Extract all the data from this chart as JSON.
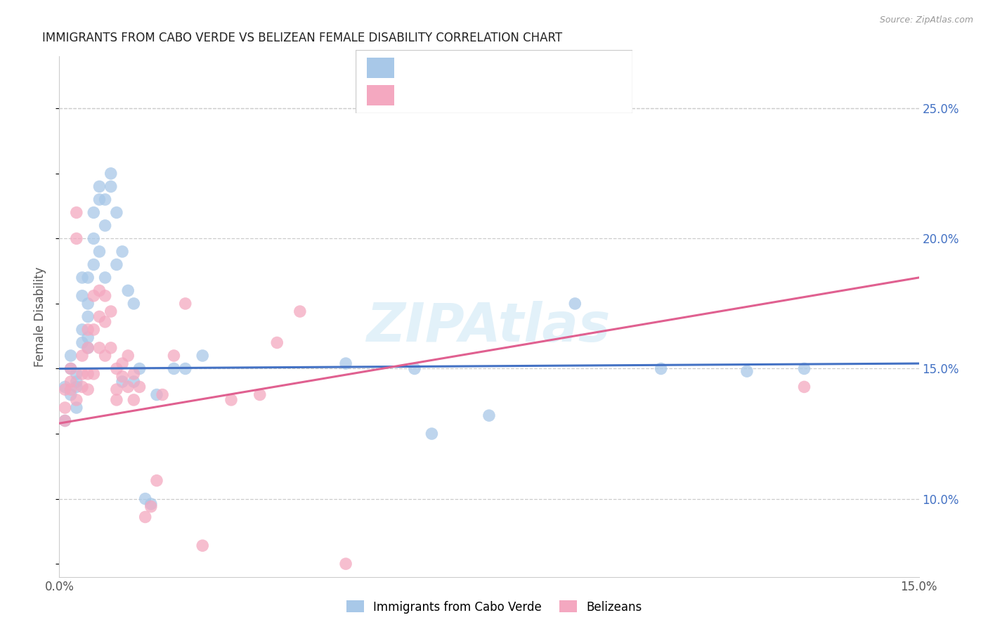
{
  "title": "IMMIGRANTS FROM CABO VERDE VS BELIZEAN FEMALE DISABILITY CORRELATION CHART",
  "source": "Source: ZipAtlas.com",
  "ylabel": "Female Disability",
  "xlim": [
    0.0,
    0.15
  ],
  "ylim": [
    0.07,
    0.27
  ],
  "x_ticks": [
    0.0,
    0.03,
    0.06,
    0.09,
    0.12,
    0.15
  ],
  "x_tick_labels": [
    "0.0%",
    "",
    "",
    "",
    "",
    "15.0%"
  ],
  "y_ticks_right": [
    0.1,
    0.15,
    0.2,
    0.25
  ],
  "y_tick_labels_right": [
    "10.0%",
    "15.0%",
    "20.0%",
    "25.0%"
  ],
  "color_blue": "#a8c8e8",
  "color_pink": "#f4a8c0",
  "line_color_blue": "#4472c4",
  "line_color_pink": "#e06090",
  "watermark": "ZIPAtlas",
  "cabo_verde_x": [
    0.001,
    0.001,
    0.002,
    0.002,
    0.002,
    0.003,
    0.003,
    0.003,
    0.003,
    0.004,
    0.004,
    0.004,
    0.004,
    0.005,
    0.005,
    0.005,
    0.005,
    0.005,
    0.006,
    0.006,
    0.006,
    0.007,
    0.007,
    0.007,
    0.008,
    0.008,
    0.008,
    0.009,
    0.009,
    0.01,
    0.01,
    0.011,
    0.011,
    0.012,
    0.013,
    0.013,
    0.014,
    0.015,
    0.016,
    0.017,
    0.02,
    0.022,
    0.025,
    0.05,
    0.062,
    0.065,
    0.075,
    0.09,
    0.105,
    0.12,
    0.13
  ],
  "cabo_verde_y": [
    0.13,
    0.143,
    0.15,
    0.14,
    0.155,
    0.145,
    0.148,
    0.143,
    0.135,
    0.185,
    0.178,
    0.165,
    0.16,
    0.185,
    0.175,
    0.17,
    0.162,
    0.158,
    0.2,
    0.21,
    0.19,
    0.22,
    0.215,
    0.195,
    0.215,
    0.205,
    0.185,
    0.225,
    0.22,
    0.21,
    0.19,
    0.195,
    0.145,
    0.18,
    0.175,
    0.145,
    0.15,
    0.1,
    0.098,
    0.14,
    0.15,
    0.15,
    0.155,
    0.152,
    0.15,
    0.125,
    0.132,
    0.175,
    0.15,
    0.149,
    0.15
  ],
  "belizean_x": [
    0.001,
    0.001,
    0.001,
    0.002,
    0.002,
    0.002,
    0.003,
    0.003,
    0.003,
    0.004,
    0.004,
    0.004,
    0.005,
    0.005,
    0.005,
    0.005,
    0.006,
    0.006,
    0.006,
    0.007,
    0.007,
    0.007,
    0.008,
    0.008,
    0.008,
    0.009,
    0.009,
    0.01,
    0.01,
    0.01,
    0.011,
    0.011,
    0.012,
    0.012,
    0.013,
    0.013,
    0.014,
    0.015,
    0.016,
    0.017,
    0.018,
    0.02,
    0.022,
    0.025,
    0.03,
    0.035,
    0.038,
    0.042,
    0.05,
    0.13
  ],
  "belizean_y": [
    0.135,
    0.13,
    0.142,
    0.145,
    0.15,
    0.142,
    0.21,
    0.2,
    0.138,
    0.155,
    0.148,
    0.143,
    0.165,
    0.158,
    0.148,
    0.142,
    0.178,
    0.165,
    0.148,
    0.18,
    0.17,
    0.158,
    0.178,
    0.168,
    0.155,
    0.172,
    0.158,
    0.15,
    0.142,
    0.138,
    0.152,
    0.147,
    0.155,
    0.143,
    0.148,
    0.138,
    0.143,
    0.093,
    0.097,
    0.107,
    0.14,
    0.155,
    0.175,
    0.082,
    0.138,
    0.14,
    0.16,
    0.172,
    0.075,
    0.143
  ]
}
